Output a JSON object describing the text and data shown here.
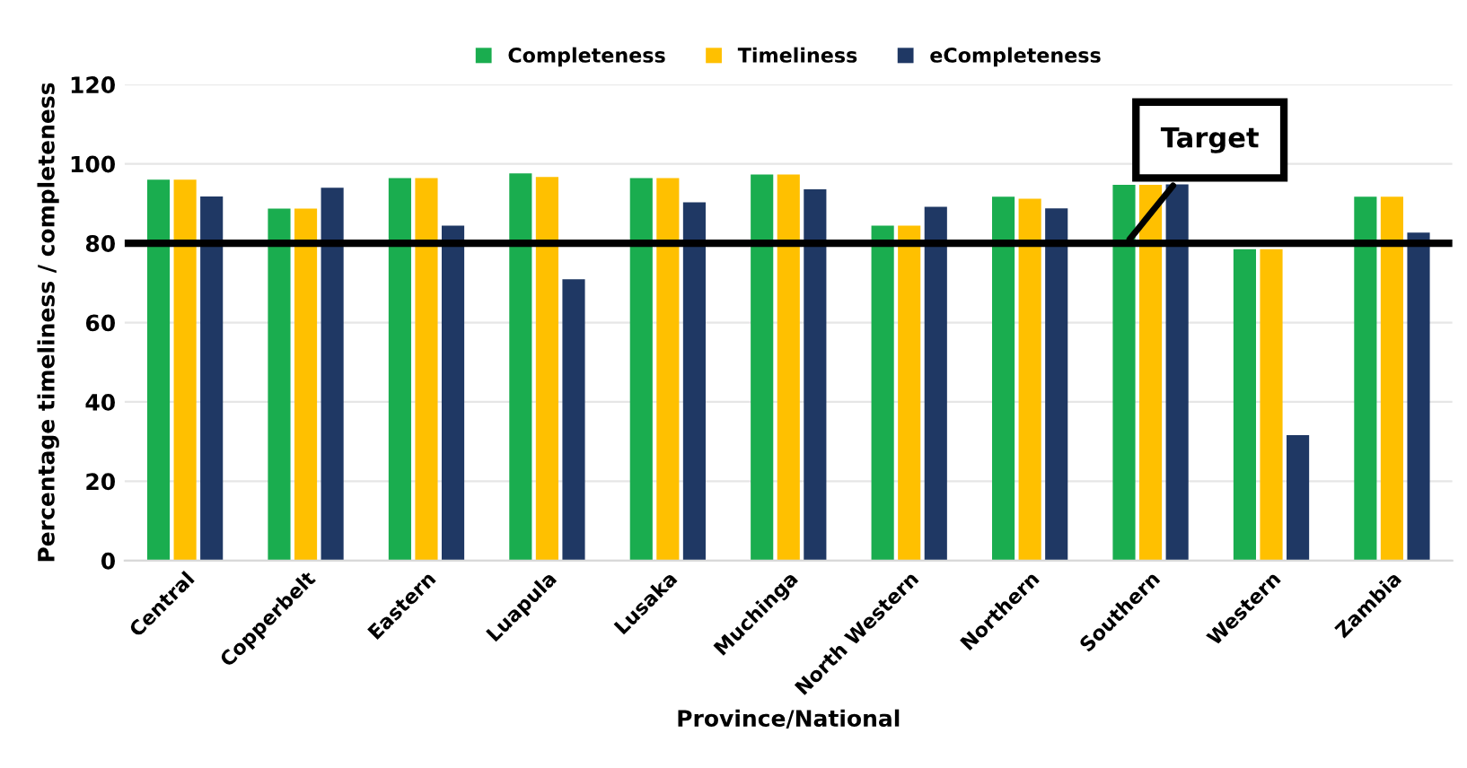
{
  "chart_data": {
    "type": "bar",
    "xlabel": "Province/National",
    "ylabel": "Percentage timeliness / completeness",
    "categories": [
      "Central",
      "Copperbelt",
      "Eastern",
      "Luapula",
      "Lusaka",
      "Muchinga",
      "North Western",
      "Northern",
      "Southern",
      "Western",
      "Zambia"
    ],
    "series": [
      {
        "name": "Completeness",
        "color": "#1aad4f",
        "values": [
          96,
          88.7,
          96.4,
          97.6,
          96.4,
          97.3,
          84.4,
          91.7,
          94.7,
          78.5,
          91.7
        ]
      },
      {
        "name": "Timeliness",
        "color": "#ffc000",
        "values": [
          96,
          88.7,
          96.4,
          96.7,
          96.4,
          97.3,
          84.4,
          91.2,
          94.7,
          78.5,
          91.7
        ]
      },
      {
        "name": "eCompleteness",
        "color": "#1f3864",
        "values": [
          91.8,
          94,
          84.4,
          70.9,
          90.3,
          93.6,
          89.2,
          88.8,
          94.8,
          31.6,
          82.7
        ]
      }
    ],
    "ylim": [
      0,
      120
    ],
    "yticks": [
      0,
      20,
      40,
      60,
      80,
      100,
      120
    ],
    "grid": "y",
    "legend": "top",
    "ref_lines": [
      {
        "axis": "y",
        "value": 80,
        "label": "Target",
        "color": "#000000"
      }
    ]
  }
}
